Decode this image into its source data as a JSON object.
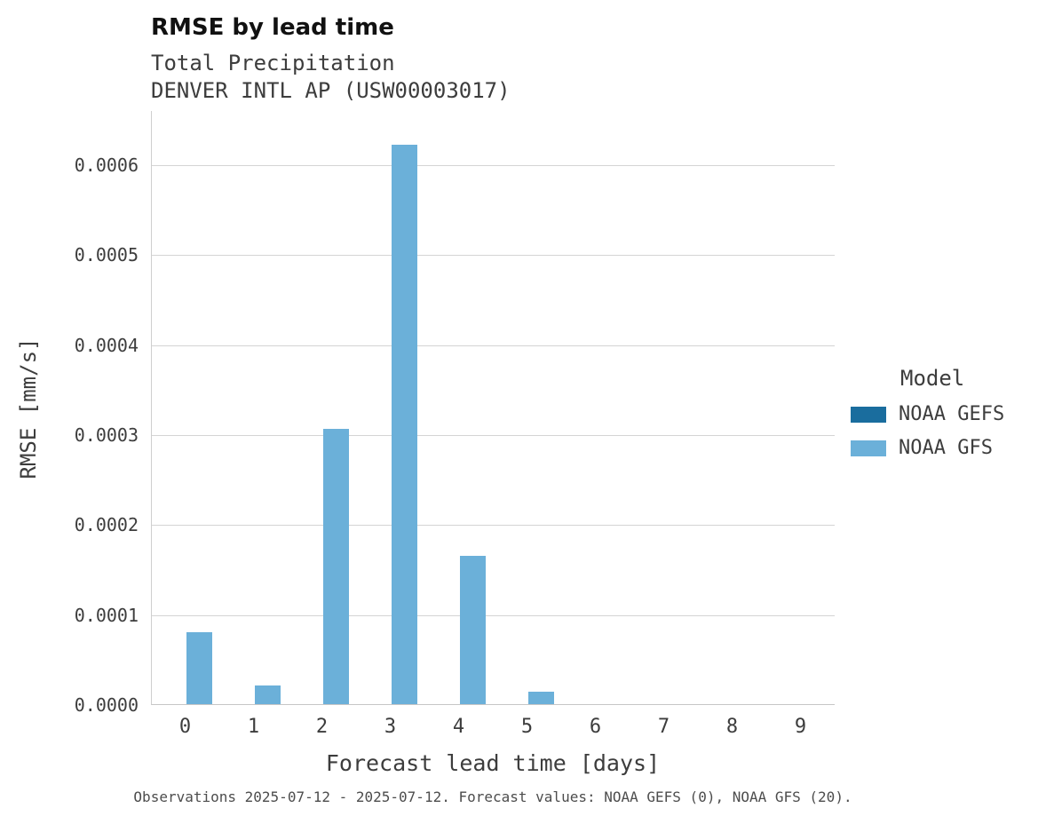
{
  "header": {
    "title": "RMSE by lead time",
    "subtitle1": "Total Precipitation",
    "subtitle2": "DENVER INTL AP (USW00003017)"
  },
  "chart_data": {
    "type": "bar",
    "title": "RMSE by lead time",
    "subtitle": [
      "Total Precipitation",
      "DENVER INTL AP (USW00003017)"
    ],
    "xlabel": "Forecast lead time [days]",
    "ylabel": "RMSE [mm/s]",
    "categories": [
      "0",
      "1",
      "2",
      "3",
      "4",
      "5",
      "6",
      "7",
      "8",
      "9"
    ],
    "series": [
      {
        "name": "NOAA GEFS",
        "color": "#1a6d9e",
        "values": [
          0,
          0,
          0,
          0,
          0,
          0,
          0,
          0,
          0,
          0
        ]
      },
      {
        "name": "NOAA GFS",
        "color": "#6bb0d9",
        "values": [
          8e-05,
          2.1e-05,
          0.000306,
          0.000622,
          0.000165,
          1.4e-05,
          0,
          0,
          0,
          0
        ]
      }
    ],
    "ylim": [
      0,
      0.00066
    ],
    "yticks": [
      0,
      0.0001,
      0.0002,
      0.0003,
      0.0004,
      0.0005,
      0.0006
    ],
    "ytick_labels": [
      "0.0000",
      "0.0001",
      "0.0002",
      "0.0003",
      "0.0004",
      "0.0005",
      "0.0006"
    ],
    "grid": true,
    "legend_title": "Model",
    "legend_position": "right"
  },
  "caption": "Observations 2025-07-12 - 2025-07-12. Forecast values: NOAA GEFS (0), NOAA GFS (20)."
}
